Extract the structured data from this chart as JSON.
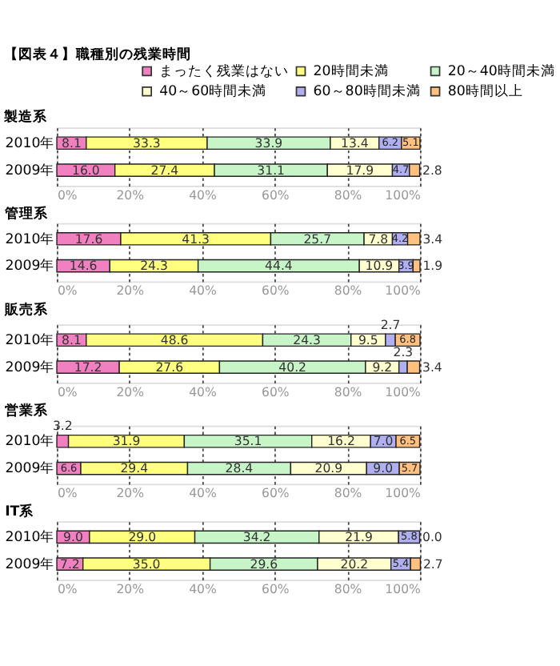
{
  "chart_data": [
    {
      "type": "bar",
      "orientation": "horizontal",
      "stacked": true,
      "title": "【図表４】職種別の残業時間",
      "subtitle": "製造系",
      "legend": "top right",
      "grid": "x",
      "categories": [
        "2010年",
        "2009年"
      ],
      "xlim": [
        0,
        100
      ],
      "xticks": [
        {
          "value": 0,
          "label": "0%"
        },
        {
          "value": 20,
          "label": "20%"
        },
        {
          "value": 40,
          "label": "40%"
        },
        {
          "value": 60,
          "label": "60%"
        },
        {
          "value": 80,
          "label": "80%"
        },
        {
          "value": 100,
          "label": "100%"
        }
      ],
      "series": [
        {
          "name": "まったく残業はない",
          "color": "#f080c0",
          "values": [
            8.1,
            16.0
          ],
          "value_labels": [
            "8.1",
            "16.0"
          ]
        },
        {
          "name": "20時間未満",
          "color": "#ffff80",
          "values": [
            33.3,
            27.4
          ],
          "value_labels": [
            "33.3",
            "27.4"
          ]
        },
        {
          "name": "20～40時間未満",
          "color": "#c8f5c8",
          "values": [
            33.9,
            31.1
          ],
          "value_labels": [
            "33.9",
            "31.1"
          ]
        },
        {
          "name": "40～60時間未満",
          "color": "#ffffd0",
          "values": [
            13.4,
            17.9
          ],
          "value_labels": [
            "13.4",
            "17.9"
          ]
        },
        {
          "name": "60～80時間未満",
          "color": "#b0b0f0",
          "values": [
            6.2,
            4.7
          ],
          "value_labels": [
            "6.2",
            "4.7"
          ]
        },
        {
          "name": "80時間以上",
          "color": "#ffc080",
          "values": [
            5.1,
            2.8
          ],
          "value_labels": [
            "5.1",
            "2.8"
          ]
        }
      ]
    },
    {
      "type": "bar",
      "orientation": "horizontal",
      "stacked": true,
      "title": "管理系",
      "grid": "x",
      "categories": [
        "2010年",
        "2009年"
      ],
      "xlim": [
        0,
        100
      ],
      "xticks": [
        {
          "value": 0,
          "label": "0%"
        },
        {
          "value": 20,
          "label": "20%"
        },
        {
          "value": 40,
          "label": "40%"
        },
        {
          "value": 60,
          "label": "60%"
        },
        {
          "value": 80,
          "label": "80%"
        },
        {
          "value": 100,
          "label": "100%"
        }
      ],
      "series": [
        {
          "color": "#f080c0",
          "values": [
            17.6,
            14.6
          ],
          "value_labels": [
            "17.6",
            "14.6"
          ]
        },
        {
          "color": "#ffff80",
          "values": [
            41.3,
            24.3
          ],
          "value_labels": [
            "41.3",
            "24.3"
          ]
        },
        {
          "color": "#c8f5c8",
          "values": [
            25.7,
            44.4
          ],
          "value_labels": [
            "25.7",
            "44.4"
          ]
        },
        {
          "color": "#ffffd0",
          "values": [
            7.8,
            10.9
          ],
          "value_labels": [
            "7.8",
            "10.9"
          ]
        },
        {
          "color": "#b0b0f0",
          "values": [
            4.2,
            3.9
          ],
          "value_labels": [
            "4.2",
            "3.9"
          ]
        },
        {
          "color": "#ffc080",
          "values": [
            3.4,
            1.9
          ],
          "value_labels": [
            "3.4",
            "1.9"
          ]
        }
      ]
    },
    {
      "type": "bar",
      "orientation": "horizontal",
      "stacked": true,
      "title": "販売系",
      "grid": "x",
      "categories": [
        "2010年",
        "2009年"
      ],
      "xlim": [
        0,
        100
      ],
      "xticks": [
        {
          "value": 0,
          "label": "0%"
        },
        {
          "value": 20,
          "label": "20%"
        },
        {
          "value": 40,
          "label": "40%"
        },
        {
          "value": 60,
          "label": "60%"
        },
        {
          "value": 80,
          "label": "80%"
        },
        {
          "value": 100,
          "label": "100%"
        }
      ],
      "series": [
        {
          "color": "#f080c0",
          "values": [
            8.1,
            17.2
          ],
          "value_labels": [
            "8.1",
            "17.2"
          ]
        },
        {
          "color": "#ffff80",
          "values": [
            48.6,
            27.6
          ],
          "value_labels": [
            "48.6",
            "27.6"
          ]
        },
        {
          "color": "#c8f5c8",
          "values": [
            24.3,
            40.2
          ],
          "value_labels": [
            "24.3",
            "40.2"
          ]
        },
        {
          "color": "#ffffd0",
          "values": [
            9.5,
            9.2
          ],
          "value_labels": [
            "9.5",
            "9.2"
          ]
        },
        {
          "color": "#b0b0f0",
          "values": [
            2.7,
            2.3
          ],
          "value_labels": [
            "2.7",
            "2.3"
          ]
        },
        {
          "color": "#ffc080",
          "values": [
            6.8,
            3.4
          ],
          "value_labels": [
            "6.8",
            "3.4"
          ]
        }
      ]
    },
    {
      "type": "bar",
      "orientation": "horizontal",
      "stacked": true,
      "title": "営業系",
      "grid": "x",
      "categories": [
        "2010年",
        "2009年"
      ],
      "xlim": [
        0,
        100
      ],
      "xticks": [
        {
          "value": 0,
          "label": "0%"
        },
        {
          "value": 20,
          "label": "20%"
        },
        {
          "value": 40,
          "label": "40%"
        },
        {
          "value": 60,
          "label": "60%"
        },
        {
          "value": 80,
          "label": "80%"
        },
        {
          "value": 100,
          "label": "100%"
        }
      ],
      "series": [
        {
          "color": "#f080c0",
          "values": [
            3.2,
            6.6
          ],
          "value_labels": [
            "3.2",
            "6.6"
          ]
        },
        {
          "color": "#ffff80",
          "values": [
            31.9,
            29.4
          ],
          "value_labels": [
            "31.9",
            "29.4"
          ]
        },
        {
          "color": "#c8f5c8",
          "values": [
            35.1,
            28.4
          ],
          "value_labels": [
            "35.1",
            "28.4"
          ]
        },
        {
          "color": "#ffffd0",
          "values": [
            16.2,
            20.9
          ],
          "value_labels": [
            "16.2",
            "20.9"
          ]
        },
        {
          "color": "#b0b0f0",
          "values": [
            7.0,
            9.0
          ],
          "value_labels": [
            "7.0",
            "9.0"
          ]
        },
        {
          "color": "#ffc080",
          "values": [
            6.5,
            5.7
          ],
          "value_labels": [
            "6.5",
            "5.7"
          ]
        }
      ]
    },
    {
      "type": "bar",
      "orientation": "horizontal",
      "stacked": true,
      "title": "IT系",
      "grid": "x",
      "categories": [
        "2010年",
        "2009年"
      ],
      "xlim": [
        0,
        100
      ],
      "xticks": [
        {
          "value": 0,
          "label": "0%"
        },
        {
          "value": 20,
          "label": "20%"
        },
        {
          "value": 40,
          "label": "40%"
        },
        {
          "value": 60,
          "label": "60%"
        },
        {
          "value": 80,
          "label": "80%"
        },
        {
          "value": 100,
          "label": "100%"
        }
      ],
      "series": [
        {
          "color": "#f080c0",
          "values": [
            9.0,
            7.2
          ],
          "value_labels": [
            "9.0",
            "7.2"
          ]
        },
        {
          "color": "#ffff80",
          "values": [
            29.0,
            35.0
          ],
          "value_labels": [
            "29.0",
            "35.0"
          ]
        },
        {
          "color": "#c8f5c8",
          "values": [
            34.2,
            29.6
          ],
          "value_labels": [
            "34.2",
            "29.6"
          ]
        },
        {
          "color": "#ffffd0",
          "values": [
            21.9,
            20.2
          ],
          "value_labels": [
            "21.9",
            "20.2"
          ]
        },
        {
          "color": "#b0b0f0",
          "values": [
            5.8,
            5.4
          ],
          "value_labels": [
            "5.8",
            "5.4"
          ]
        },
        {
          "color": "#ffc080",
          "values": [
            0.0,
            2.7
          ],
          "value_labels": [
            "0.0",
            "2.7"
          ]
        }
      ]
    }
  ]
}
